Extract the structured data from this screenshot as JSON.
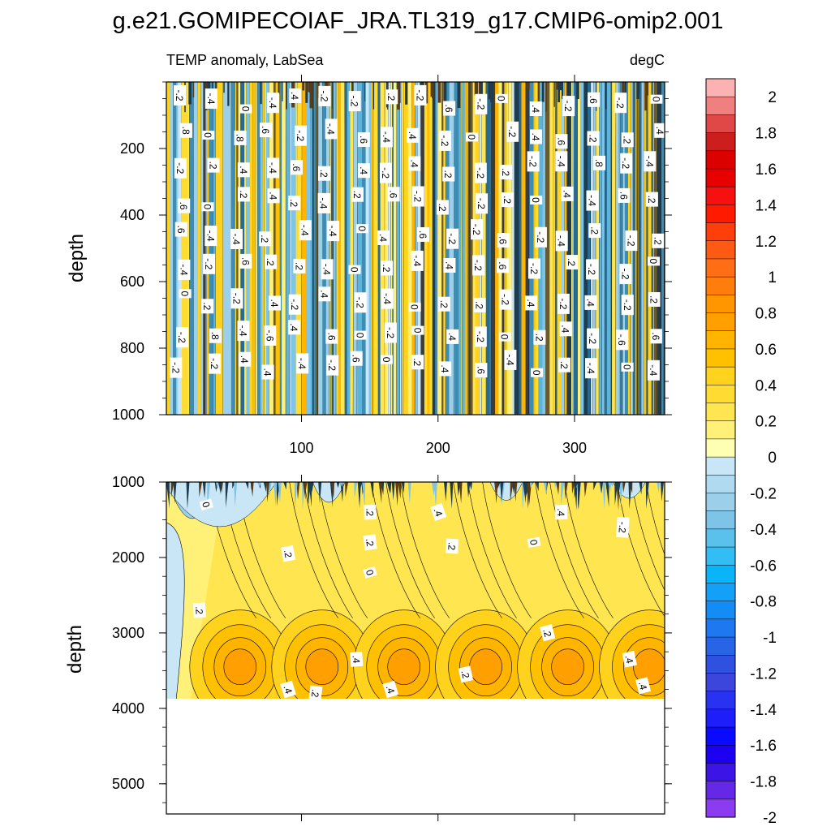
{
  "figure": {
    "title": "g.e21.GOMIPECOIAF_JRA.TL319_g17.CMIP6-omip2.001",
    "variable_label": "TEMP anomaly, LabSea",
    "units_label": "degC"
  },
  "chart_data": [
    {
      "type": "heatmap",
      "panel": "upper",
      "title": "TEMP anomaly, LabSea",
      "units": "degC",
      "ylabel": "depth",
      "xlabel": "",
      "xlim": [
        1,
        366
      ],
      "ylim": [
        1000,
        0
      ],
      "x_ticks": [
        100,
        200,
        300
      ],
      "y_ticks": [
        200,
        400,
        600,
        800,
        1000
      ],
      "description_values": "high-frequency vertical stripes of alternating warm (0 to 0.8) and cool (-0.6 to 0) anomalies spanning the full depth range",
      "contour_labels": [
        "-.2",
        "-.4",
        "0",
        "-.4",
        ".4",
        "-.2",
        "-.2",
        ".2",
        "-.2",
        ".6",
        "-.2",
        "0",
        ".4",
        "-.2",
        ".6",
        "-.2",
        "0",
        ".8",
        "0",
        ".8",
        ".6",
        "-.2",
        "-.4",
        ".6",
        "-.4",
        ".4",
        "-.2",
        "0",
        "-.2",
        ".4",
        ".6",
        ".2",
        ".2",
        ".4",
        "-.2",
        ".2",
        ".4",
        "-.4",
        ".6",
        ".2",
        ".4",
        "-.2",
        ".4",
        ".2",
        "-.2",
        ".2",
        "-.2",
        "-.4",
        ".8",
        "-.2",
        "-.4",
        ".6",
        "0",
        ".2",
        ".4",
        ".2",
        "-.4",
        ".2",
        ".6",
        "-.2",
        ".2",
        "-.2",
        ".2",
        "0",
        ".4",
        "-.4",
        ".6",
        ".2",
        ".6",
        "-.4",
        "-.4",
        ".2",
        "-.4",
        "-.4",
        "0",
        ".4",
        ".6",
        "-.2",
        "-.2",
        ".6",
        "-.2",
        "-.4",
        ".2",
        "-.2",
        ".2",
        "-.4",
        "-.2",
        ".6",
        ".2",
        ".2",
        "-.4",
        "0",
        ".2",
        "-.4",
        ".4",
        "-.2",
        ".6",
        "-.2",
        ".2",
        "-.2",
        "-.2",
        "0",
        "0",
        ".2",
        "-.2",
        ".4",
        "-.2",
        ".4",
        "-.2",
        "-.4",
        "0",
        ".2",
        ".2",
        "-.2",
        ".4",
        "-.2",
        ".4",
        "-.2",
        ".2",
        "-.2",
        ".8",
        "-.4",
        "-.6",
        ".4",
        ".6",
        "0",
        "-.2",
        "0",
        ".4",
        "-.2",
        "0",
        ".2",
        ".4",
        "-.2",
        "-.6",
        ".6",
        "-.2",
        "-.2",
        ".4",
        ".4",
        "-.4",
        "-.2",
        ".6",
        "0",
        ".2",
        ".4",
        ".6",
        "-.4",
        "0",
        ".2",
        "-.4",
        "0",
        "-.4"
      ]
    },
    {
      "type": "heatmap",
      "panel": "lower",
      "ylabel": "depth",
      "xlabel": "",
      "xlim": [
        1,
        366
      ],
      "ylim": [
        5400,
        1000
      ],
      "y_ticks": [
        1000,
        2000,
        3000,
        4000,
        5000
      ],
      "data_bottom_depth": 3900,
      "description_values": "mostly warm anomalies 0 to 0.6 with maxima (~0.5-0.6) centred near 3400 m, recurring about every 60 days; cool -0.2 to 0 patches near the top",
      "contour_labels": [
        "0",
        ".2",
        ".4",
        ".4",
        "-.2",
        ".2",
        ".2",
        "0",
        ".2",
        "0",
        ".2",
        ".2",
        ".4",
        ".2",
        ".4",
        ".4",
        ".2",
        ".4",
        ".4"
      ]
    },
    {
      "type": "colorbar",
      "levels": [
        2,
        1.8,
        1.6,
        1.4,
        1.2,
        1,
        0.8,
        0.6,
        0.4,
        0.2,
        0,
        -0.2,
        -0.4,
        -0.6,
        -0.8,
        -1,
        -1.2,
        -1.4,
        -1.6,
        -1.8,
        -2
      ],
      "tick_labels": [
        "2",
        "1.8",
        "1.6",
        "1.4",
        "1.2",
        "1",
        "0.8",
        "0.6",
        "0.4",
        "0.2",
        "0",
        "-0.2",
        "-0.4",
        "-0.6",
        "-0.8",
        "-1",
        "-1.2",
        "-1.4",
        "-1.6",
        "-1.8",
        "-2"
      ],
      "colors": [
        "#fcb2b2",
        "#f08080",
        "#e04848",
        "#cd1e1e",
        "#dc0000",
        "#e80000",
        "#f61010",
        "#ff1a00",
        "#ff3e0a",
        "#ff5a14",
        "#ff6e14",
        "#ff7d0a",
        "#ff9600",
        "#ffa000",
        "#ffb400",
        "#ffc000",
        "#ffd21e",
        "#ffdc32",
        "#ffe650",
        "#fff078",
        "#ffffb4",
        "#c8e6f5",
        "#b0daf0",
        "#9ccfea",
        "#7ec4e8",
        "#5ac0ec",
        "#32bef4",
        "#0ab4f8",
        "#14a0f8",
        "#148cf6",
        "#1e78f0",
        "#2864e6",
        "#3050e0",
        "#3c46dc",
        "#2832f0",
        "#1e1efa",
        "#0a0aff",
        "#1c00f0",
        "#3c14e6",
        "#6428e6",
        "#8c3cf0"
      ]
    }
  ]
}
